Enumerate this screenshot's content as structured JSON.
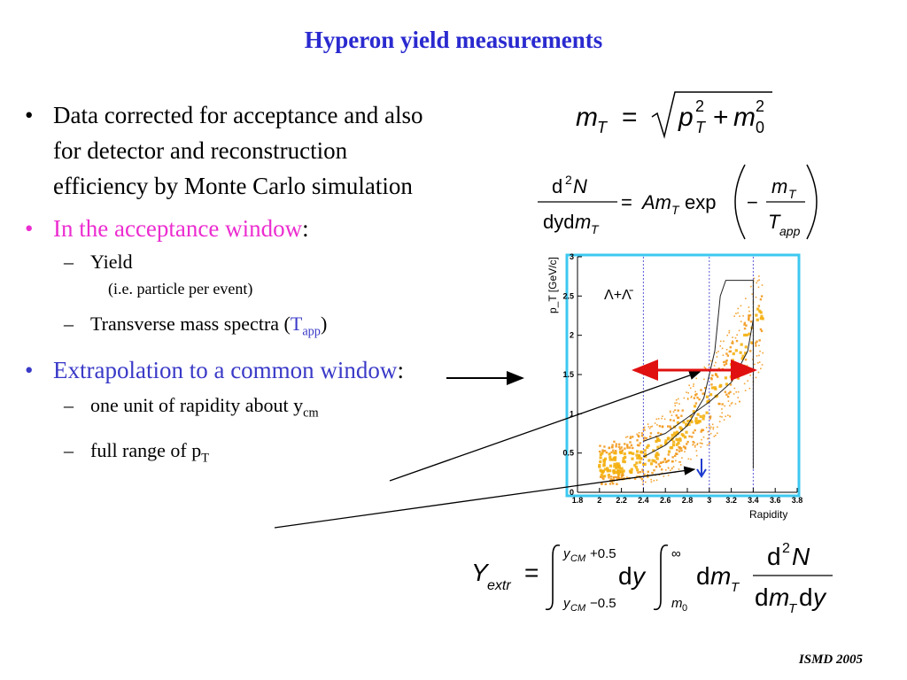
{
  "title": "Hyperon yield measurements",
  "bullets": {
    "b1": "Data corrected for acceptance and also for detector and reconstruction efficiency by Monte Carlo simulation",
    "b2_colored": "In the acceptance window",
    "b2_colon": ":",
    "sub1": "Yield",
    "sub1_note": "(i.e. particle per event)",
    "sub2_text": "Transverse mass spectra (",
    "sub2_T": "T",
    "sub2_app": "app",
    "sub2_close": ")",
    "b3_colored": "Extrapolation to a common window",
    "b3_colon": ":",
    "sub3_text": "one unit of rapidity about y",
    "sub3_sub": "cm",
    "sub4_text": "full range of p",
    "sub4_sub": "T"
  },
  "plot": {
    "particle_label": "Λ+Λ̄",
    "ylabel": "p_T [GeV/c]",
    "xlabel": "Rapidity",
    "xticks": [
      "1.8",
      "2",
      "2.2",
      "2.4",
      "2.6",
      "2.8",
      "3",
      "3.2",
      "3.4",
      "3.6",
      "3.8"
    ],
    "yticks": [
      "0",
      "0.5",
      "1",
      "1.5",
      "2",
      "2.5",
      "3"
    ]
  },
  "footer": "ISMD 2005",
  "colors": {
    "title": "#2a2ad0",
    "pink": "#ec2dd0",
    "blue": "#3a3ac8",
    "arrow_red": "#e01010",
    "frame_cyan": "#3cc8f0",
    "scatter_orange": "#f29a1e"
  }
}
